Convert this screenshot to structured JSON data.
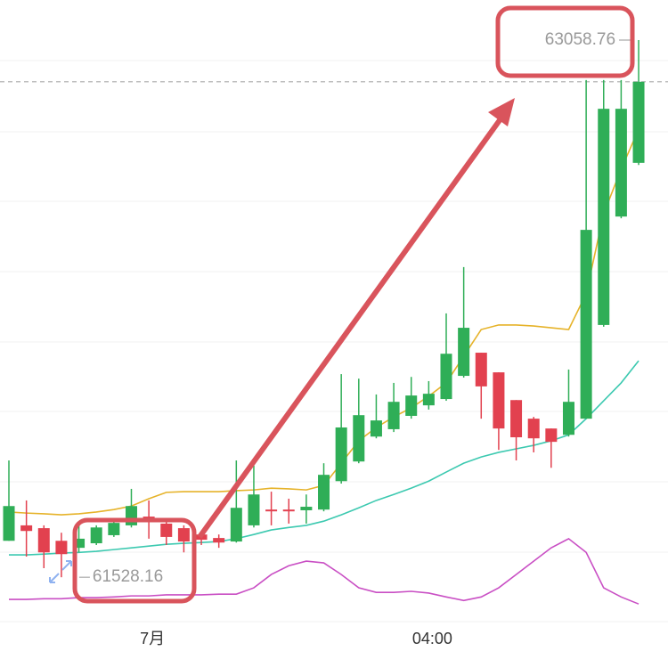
{
  "chart_data": {
    "type": "candlestick",
    "categories": [
      null,
      null,
      null,
      null,
      null,
      null,
      null,
      null,
      "7月",
      null,
      null,
      null,
      null,
      null,
      null,
      null,
      null,
      null,
      null,
      null,
      null,
      null,
      null,
      null,
      "04:00",
      null,
      null,
      null,
      null,
      null,
      null,
      null,
      null,
      null,
      null,
      null,
      null
    ],
    "ohlc": [
      [
        61632,
        61861,
        61632,
        61731
      ],
      [
        61676,
        61747,
        61587,
        61660
      ],
      [
        61668,
        61676,
        61554,
        61599
      ],
      [
        61632,
        61655,
        61528.16,
        61594
      ],
      [
        61612,
        61688,
        61599,
        61638
      ],
      [
        61625,
        61676,
        61620,
        61670
      ],
      [
        61648,
        61691,
        61643,
        61683
      ],
      [
        61676,
        61780,
        61670,
        61731
      ],
      [
        61701,
        61747,
        61638,
        61688
      ],
      [
        61681,
        61693,
        61620,
        61643
      ],
      [
        61668,
        61676,
        61599,
        61630
      ],
      [
        61650,
        61658,
        61620,
        61635
      ],
      [
        61640,
        61650,
        61612,
        61627
      ],
      [
        61630,
        61861,
        61627,
        61726
      ],
      [
        61676,
        61846,
        61670,
        61764
      ],
      [
        61721,
        61772,
        61676,
        61716
      ],
      [
        61721,
        61752,
        61681,
        61716
      ],
      [
        61719,
        61764,
        61681,
        61729
      ],
      [
        61721,
        61853,
        61716,
        61820
      ],
      [
        61802,
        62107,
        61795,
        61955
      ],
      [
        61858,
        62094,
        61853,
        61990
      ],
      [
        61929,
        62049,
        61924,
        61975
      ],
      [
        61950,
        62082,
        61942,
        62028
      ],
      [
        61988,
        62099,
        61980,
        62046
      ],
      [
        62018,
        62087,
        62006,
        62051
      ],
      [
        62036,
        62280,
        62031,
        62165
      ],
      [
        62102,
        62412,
        62097,
        62239
      ],
      [
        62168,
        62168,
        61980,
        62072
      ],
      [
        62112,
        62112,
        61891,
        61952
      ],
      [
        62033,
        62033,
        61861,
        61927
      ],
      [
        61980,
        61985,
        61884,
        61924
      ],
      [
        61952,
        61952,
        61840,
        61914
      ],
      [
        61934,
        62120,
        61929,
        62028
      ],
      [
        61980,
        62945,
        61980,
        62518
      ],
      [
        62247,
        62945,
        62242,
        62863
      ],
      [
        62556,
        62945,
        62551,
        62863
      ],
      [
        62709,
        63058.76,
        62703,
        62940
      ]
    ],
    "up_color": "#2fae57",
    "down_color": "#e2414f",
    "lines": [
      {
        "color": "#e6b32a",
        "values": [
          61714,
          61711,
          61709,
          61706,
          61709,
          61714,
          61721,
          61731,
          61752,
          61770,
          61772,
          61772,
          61772,
          61775,
          61777,
          61782,
          61780,
          61777,
          61790,
          61853,
          61917,
          61955,
          61985,
          62011,
          62044,
          62082,
          62158,
          62234,
          62247,
          62247,
          62244,
          62239,
          62234,
          62336,
          62564,
          62691,
          62805
        ]
      },
      {
        "color": "#3cc9b0",
        "values": [
          61592,
          61592,
          61594,
          61597,
          61599,
          61602,
          61607,
          61612,
          61617,
          61622,
          61625,
          61627,
          61630,
          61638,
          61650,
          61663,
          61670,
          61676,
          61688,
          61706,
          61726,
          61747,
          61764,
          61782,
          61802,
          61828,
          61853,
          61871,
          61884,
          61894,
          61904,
          61917,
          61934,
          61980,
          62031,
          62082,
          62145
        ]
      },
      {
        "color": "#c94fc4",
        "values": [
          61465,
          61465,
          61467,
          61467,
          61470,
          61470,
          61472,
          61475,
          61475,
          61478,
          61478,
          61478,
          61480,
          61480,
          61498,
          61536,
          61561,
          61574,
          61569,
          61536,
          61498,
          61485,
          61485,
          61488,
          61483,
          61472,
          61462,
          61472,
          61498,
          61536,
          61574,
          61612,
          61638,
          61599,
          61498,
          61472,
          61452
        ]
      }
    ],
    "ylim": [
      61318,
      63173
    ]
  }
}
